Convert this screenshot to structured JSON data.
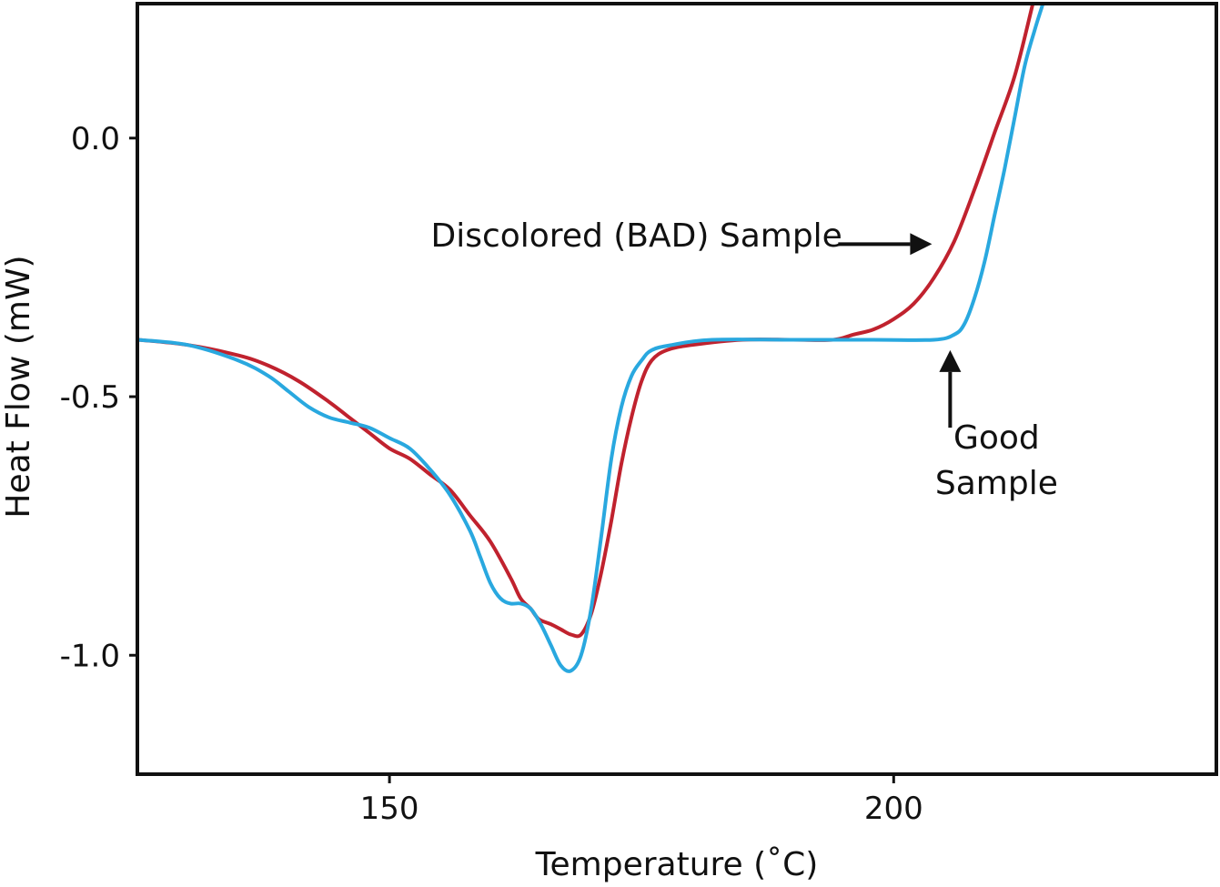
{
  "chart_data": {
    "type": "line",
    "xlabel": "Temperature (˚C)",
    "ylabel": "Heat Flow (mW)",
    "xlim": [
      125,
      232
    ],
    "ylim": [
      -1.23,
      0.26
    ],
    "xticks": [
      150,
      200
    ],
    "yticks": [
      0.0,
      -0.5,
      -1.0
    ],
    "xtick_labels": [
      "150",
      "200"
    ],
    "ytick_labels": [
      "0.0",
      "-0.5",
      "-1.0"
    ],
    "grid": false,
    "legend": "none",
    "series": [
      {
        "key": "bad",
        "color": "#c0222e",
        "points": [
          [
            125.0,
            -0.39
          ],
          [
            130.0,
            -0.4
          ],
          [
            135.0,
            -0.42
          ],
          [
            138.0,
            -0.44
          ],
          [
            141.0,
            -0.47
          ],
          [
            144.0,
            -0.51
          ],
          [
            146.0,
            -0.54
          ],
          [
            148.0,
            -0.57
          ],
          [
            150.0,
            -0.6
          ],
          [
            152.0,
            -0.62
          ],
          [
            154.0,
            -0.65
          ],
          [
            156.0,
            -0.68
          ],
          [
            158.0,
            -0.73
          ],
          [
            160.0,
            -0.78
          ],
          [
            162.0,
            -0.85
          ],
          [
            163.0,
            -0.89
          ],
          [
            164.0,
            -0.91
          ],
          [
            164.8,
            -0.93
          ],
          [
            166.0,
            -0.94
          ],
          [
            167.0,
            -0.95
          ],
          [
            168.0,
            -0.96
          ],
          [
            169.0,
            -0.96
          ],
          [
            170.0,
            -0.92
          ],
          [
            171.0,
            -0.84
          ],
          [
            172.0,
            -0.74
          ],
          [
            173.0,
            -0.63
          ],
          [
            174.0,
            -0.54
          ],
          [
            175.0,
            -0.47
          ],
          [
            176.0,
            -0.43
          ],
          [
            177.5,
            -0.41
          ],
          [
            180.0,
            -0.4
          ],
          [
            185.0,
            -0.39
          ],
          [
            190.0,
            -0.39
          ],
          [
            194.0,
            -0.39
          ],
          [
            196.0,
            -0.38
          ],
          [
            198.0,
            -0.37
          ],
          [
            200.0,
            -0.35
          ],
          [
            202.0,
            -0.32
          ],
          [
            204.0,
            -0.27
          ],
          [
            206.0,
            -0.2
          ],
          [
            208.0,
            -0.1
          ],
          [
            210.0,
            0.01
          ],
          [
            212.0,
            0.12
          ],
          [
            213.8,
            0.26
          ]
        ]
      },
      {
        "key": "good",
        "color": "#29a8df",
        "points": [
          [
            125.0,
            -0.39
          ],
          [
            130.0,
            -0.4
          ],
          [
            135.0,
            -0.43
          ],
          [
            138.0,
            -0.46
          ],
          [
            140.0,
            -0.49
          ],
          [
            142.0,
            -0.52
          ],
          [
            144.0,
            -0.54
          ],
          [
            146.0,
            -0.55
          ],
          [
            148.0,
            -0.56
          ],
          [
            150.0,
            -0.58
          ],
          [
            152.0,
            -0.6
          ],
          [
            154.0,
            -0.64
          ],
          [
            156.0,
            -0.69
          ],
          [
            158.0,
            -0.76
          ],
          [
            159.0,
            -0.81
          ],
          [
            160.0,
            -0.86
          ],
          [
            161.0,
            -0.89
          ],
          [
            162.0,
            -0.9
          ],
          [
            163.0,
            -0.9
          ],
          [
            164.0,
            -0.91
          ],
          [
            165.0,
            -0.94
          ],
          [
            166.0,
            -0.98
          ],
          [
            167.0,
            -1.02
          ],
          [
            168.0,
            -1.03
          ],
          [
            169.0,
            -1.0
          ],
          [
            170.0,
            -0.91
          ],
          [
            171.0,
            -0.77
          ],
          [
            172.0,
            -0.62
          ],
          [
            173.0,
            -0.52
          ],
          [
            174.0,
            -0.46
          ],
          [
            175.0,
            -0.43
          ],
          [
            176.0,
            -0.41
          ],
          [
            178.0,
            -0.4
          ],
          [
            182.0,
            -0.39
          ],
          [
            190.0,
            -0.39
          ],
          [
            198.0,
            -0.39
          ],
          [
            204.0,
            -0.39
          ],
          [
            206.0,
            -0.38
          ],
          [
            207.0,
            -0.36
          ],
          [
            208.0,
            -0.31
          ],
          [
            209.0,
            -0.24
          ],
          [
            210.0,
            -0.15
          ],
          [
            211.0,
            -0.06
          ],
          [
            212.0,
            0.04
          ],
          [
            213.0,
            0.14
          ],
          [
            214.0,
            0.21
          ],
          [
            214.8,
            0.26
          ]
        ]
      }
    ],
    "annotations": [
      {
        "name": "bad-sample-label",
        "lines": [
          "Discolored (BAD) Sample"
        ],
        "anchor": [
          174.5,
          -0.21
        ],
        "arrow_from": [
          194.5,
          -0.205
        ],
        "arrow_to": [
          203.8,
          -0.205
        ]
      },
      {
        "name": "good-sample-label",
        "lines": [
          "Good",
          "Sample"
        ],
        "anchor": [
          210.2,
          -0.6
        ],
        "arrow_from": [
          205.6,
          -0.56
        ],
        "arrow_to": [
          205.6,
          -0.41
        ]
      }
    ]
  }
}
